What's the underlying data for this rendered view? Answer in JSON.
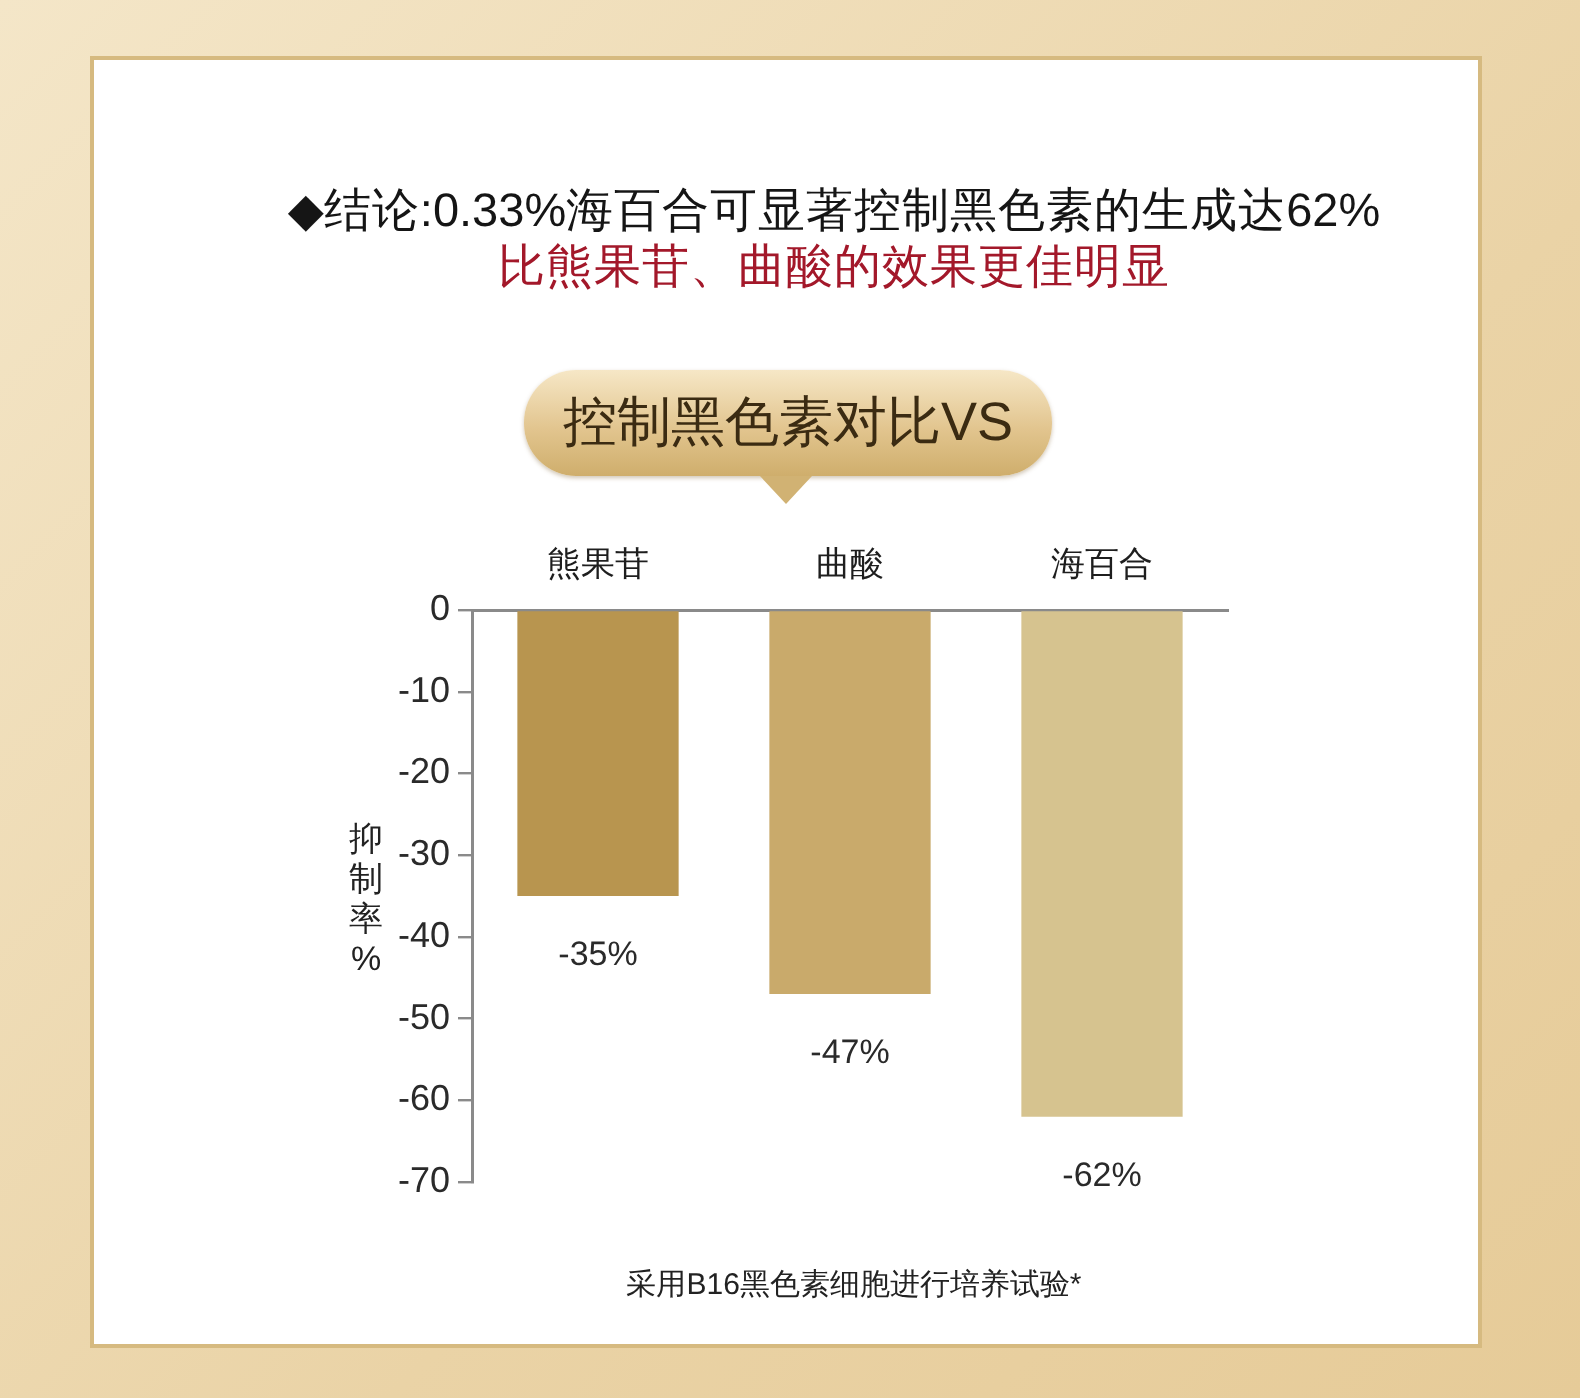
{
  "chart_data": {
    "type": "bar",
    "title": "◆结论:0.33%海百合可显著控制黑色素的生成达62%",
    "subtitle": "比熊果苷、曲酸的效果更佳明显",
    "ylabel": "抑制率%",
    "annotations": [
      "控制黑色素对比VS",
      "采用B16黑色素细胞进行培养试验*"
    ],
    "categories": [
      "熊果苷",
      "曲酸",
      "海百合"
    ],
    "values": [
      -35,
      -47,
      -62
    ],
    "colors": [
      "#b8954f",
      "#c9aa6b",
      "#d6c38f"
    ],
    "value_labels": [
      "-35%",
      "-47%",
      "-62%"
    ],
    "ylim": [
      -70,
      0
    ],
    "yticks": [
      0,
      -10,
      -20,
      -30,
      -40,
      -50,
      -60,
      -70
    ]
  }
}
